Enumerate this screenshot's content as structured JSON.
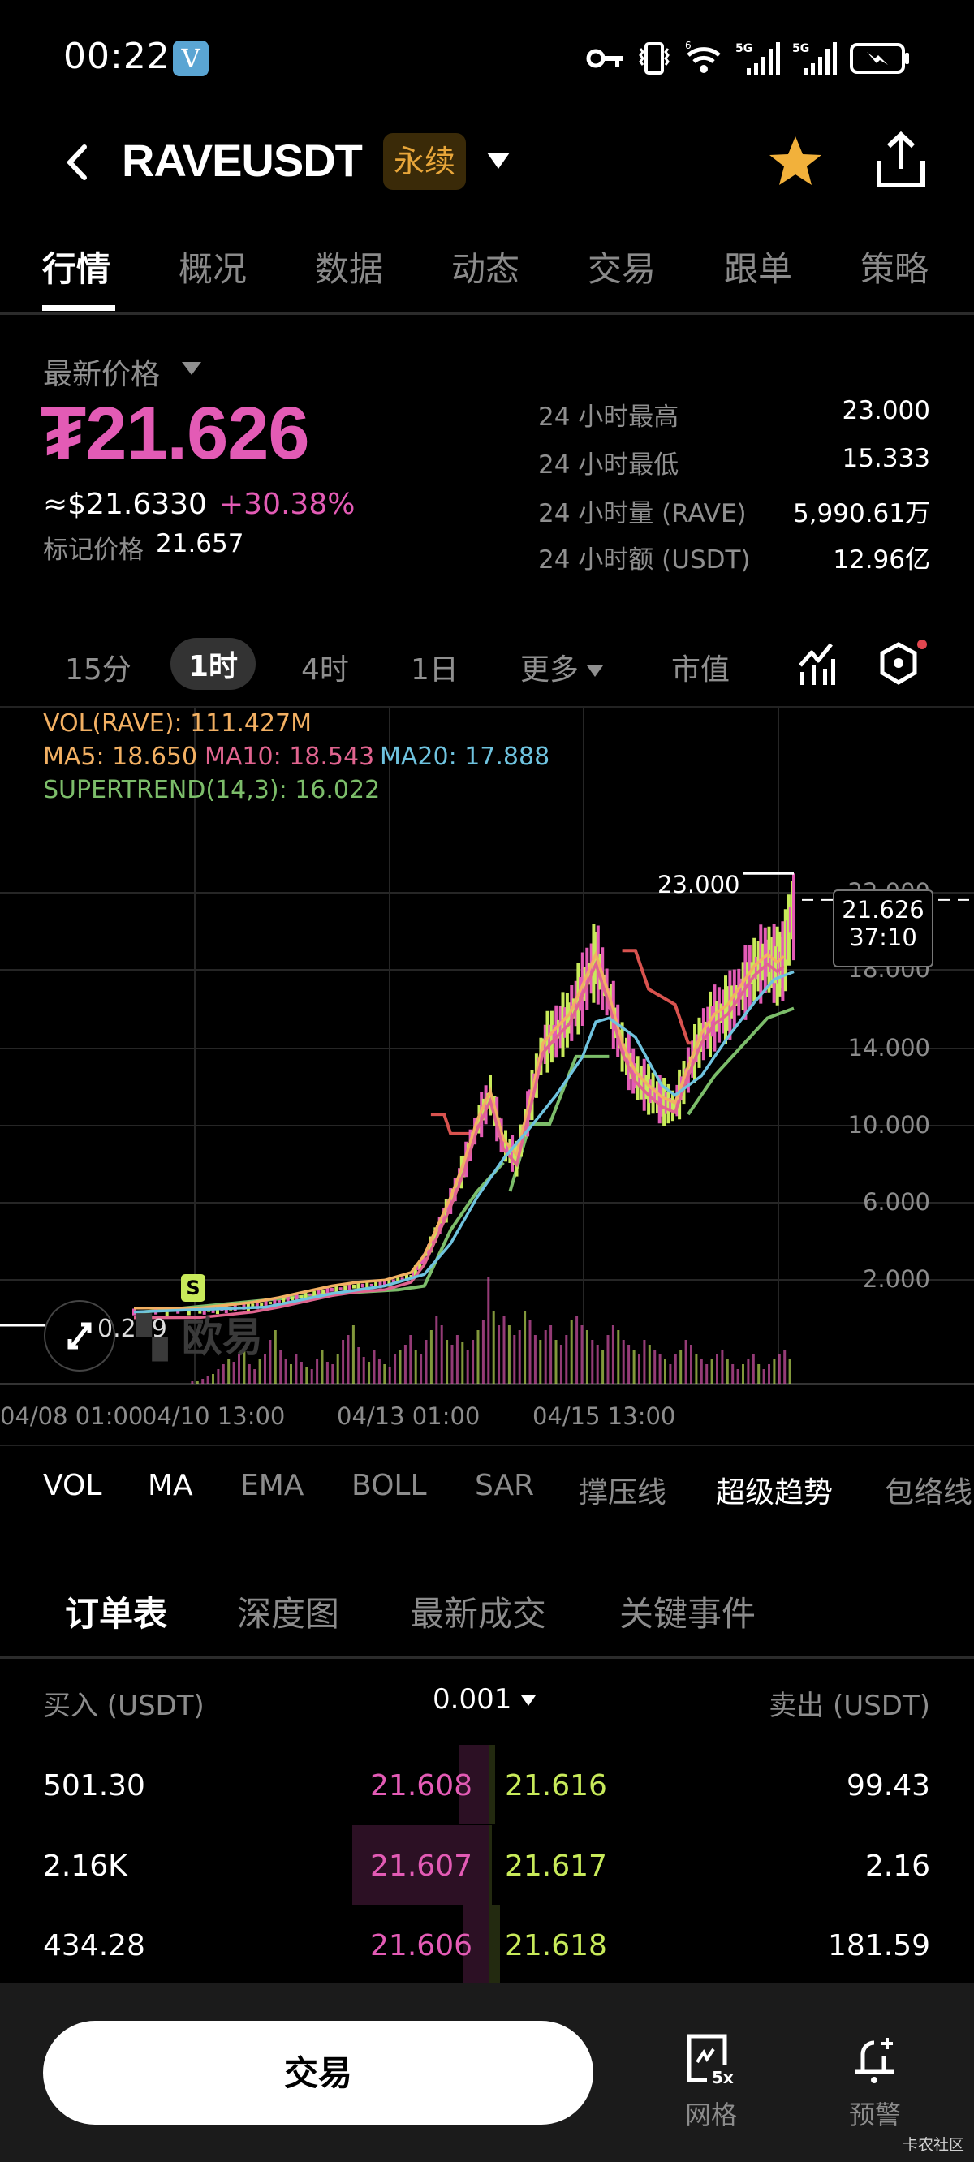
{
  "status_bar": {
    "time": "00:22",
    "badge": "V",
    "network_labels": [
      "6",
      "5G",
      "5G"
    ]
  },
  "header": {
    "pair": "RAVEUSDT",
    "contract_type": "永续",
    "favorited": true
  },
  "tabs": [
    {
      "label": "行情",
      "active": true
    },
    {
      "label": "概况"
    },
    {
      "label": "数据"
    },
    {
      "label": "动态"
    },
    {
      "label": "交易"
    },
    {
      "label": "跟单"
    },
    {
      "label": "策略"
    }
  ],
  "price": {
    "label": "最新价格",
    "last": "₮21.626",
    "usd": "≈$21.6330",
    "change": "+30.38%",
    "mark_label": "标记价格",
    "mark_value": "21.657",
    "up_color": "#e35bb5",
    "down_color": "#c8ea5a"
  },
  "stats": [
    {
      "label": "24 小时最高",
      "value": "23.000"
    },
    {
      "label": "24 小时最低",
      "value": "15.333"
    },
    {
      "label": "24 小时量 (RAVE)",
      "value": "5,990.61万"
    },
    {
      "label": "24 小时额 (USDT)",
      "value": "12.96亿"
    }
  ],
  "timeframes": [
    {
      "label": "15分"
    },
    {
      "label": "1时",
      "active": true
    },
    {
      "label": "4时"
    },
    {
      "label": "1日"
    },
    {
      "label": "更多"
    },
    {
      "label": "市值"
    }
  ],
  "indicators_legend": {
    "vol": "VOL(RAVE): 111.427M",
    "ma5": "MA5: 18.650",
    "ma10": "MA10: 18.543",
    "ma20": "MA20: 17.888",
    "supertrend": "SUPERTREND(14,3): 16.022"
  },
  "chart_data": {
    "type": "candlestick",
    "title": "RAVEUSDT Perpetual 1H",
    "y_ticks": [
      "22.000",
      "18.000",
      "14.000",
      "10.000",
      "6.000",
      "2.000"
    ],
    "ylim": [
      0,
      24
    ],
    "x_ticks": [
      "04/08 01:00",
      "04/10 13:00",
      "04/13 01:00",
      "04/15 13:00"
    ],
    "high_marker": "23.000",
    "low_marker": "0.249",
    "last_price_tag": "21.626",
    "countdown": "37:10",
    "signal_marker": "S",
    "close_path": [
      [
        0.0,
        0.25
      ],
      [
        0.1,
        0.26
      ],
      [
        0.14,
        0.4
      ],
      [
        0.18,
        0.55
      ],
      [
        0.22,
        0.8
      ],
      [
        0.26,
        1.1
      ],
      [
        0.3,
        1.4
      ],
      [
        0.34,
        1.6
      ],
      [
        0.38,
        1.7
      ],
      [
        0.42,
        2.1
      ],
      [
        0.44,
        3.0
      ],
      [
        0.46,
        4.5
      ],
      [
        0.48,
        6.0
      ],
      [
        0.5,
        7.8
      ],
      [
        0.52,
        10.0
      ],
      [
        0.54,
        11.5
      ],
      [
        0.56,
        9.0
      ],
      [
        0.58,
        8.2
      ],
      [
        0.6,
        11.0
      ],
      [
        0.62,
        14.0
      ],
      [
        0.64,
        14.8
      ],
      [
        0.66,
        15.5
      ],
      [
        0.68,
        17.0
      ],
      [
        0.7,
        18.6
      ],
      [
        0.72,
        16.5
      ],
      [
        0.74,
        14.0
      ],
      [
        0.76,
        12.5
      ],
      [
        0.78,
        11.8
      ],
      [
        0.8,
        11.2
      ],
      [
        0.82,
        10.9
      ],
      [
        0.84,
        12.8
      ],
      [
        0.86,
        14.5
      ],
      [
        0.88,
        15.5
      ],
      [
        0.9,
        16.0
      ],
      [
        0.92,
        17.0
      ],
      [
        0.94,
        18.0
      ],
      [
        0.96,
        18.6
      ],
      [
        0.975,
        18.2
      ],
      [
        0.985,
        18.5
      ],
      [
        1.0,
        21.626
      ]
    ],
    "ma20_path": [
      [
        0.0,
        0.25
      ],
      [
        0.2,
        0.5
      ],
      [
        0.3,
        1.2
      ],
      [
        0.38,
        1.6
      ],
      [
        0.44,
        2.2
      ],
      [
        0.48,
        3.8
      ],
      [
        0.52,
        6.2
      ],
      [
        0.56,
        8.2
      ],
      [
        0.6,
        9.8
      ],
      [
        0.64,
        11.5
      ],
      [
        0.68,
        13.5
      ],
      [
        0.7,
        15.3
      ],
      [
        0.72,
        15.5
      ],
      [
        0.76,
        14.5
      ],
      [
        0.8,
        12.0
      ],
      [
        0.82,
        11.5
      ],
      [
        0.86,
        12.5
      ],
      [
        0.9,
        14.5
      ],
      [
        0.94,
        16.3
      ],
      [
        0.97,
        17.5
      ],
      [
        1.0,
        17.9
      ]
    ],
    "supertrend_down_segments": [
      [
        [
          0.45,
          10.5
        ],
        [
          0.47,
          10.5
        ],
        [
          0.48,
          9.5
        ],
        [
          0.52,
          9.5
        ]
      ],
      [
        [
          0.74,
          19.0
        ],
        [
          0.76,
          19.0
        ],
        [
          0.78,
          17.0
        ],
        [
          0.82,
          16.2
        ],
        [
          0.84,
          14.2
        ],
        [
          0.85,
          14.2
        ]
      ]
    ],
    "supertrend_up_segments": [
      [
        [
          0.0,
          0.2
        ],
        [
          0.3,
          1.2
        ],
        [
          0.4,
          1.4
        ],
        [
          0.44,
          1.6
        ],
        [
          0.48,
          4.5
        ],
        [
          0.52,
          6.5
        ],
        [
          0.56,
          8.0
        ]
      ],
      [
        [
          0.57,
          6.5
        ],
        [
          0.6,
          10.0
        ],
        [
          0.63,
          10.0
        ],
        [
          0.67,
          13.5
        ],
        [
          0.72,
          13.5
        ]
      ],
      [
        [
          0.84,
          10.5
        ],
        [
          0.88,
          12.5
        ],
        [
          0.92,
          14.0
        ],
        [
          0.96,
          15.5
        ],
        [
          1.0,
          16.0
        ]
      ]
    ],
    "volume_heights": [
      0,
      0,
      0,
      0,
      0,
      0,
      0,
      0,
      0,
      0,
      0,
      1,
      1,
      2,
      3,
      4,
      6,
      8,
      10,
      9,
      12,
      14,
      8,
      6,
      10,
      12,
      18,
      22,
      14,
      10,
      8,
      12,
      9,
      7,
      6,
      10,
      14,
      9,
      8,
      12,
      18,
      20,
      24,
      15,
      11,
      9,
      14,
      10,
      8,
      7,
      12,
      14,
      16,
      20,
      14,
      12,
      18,
      22,
      28,
      24,
      18,
      16,
      20,
      17,
      14,
      18,
      22,
      26,
      44,
      30,
      24,
      28,
      24,
      20,
      22,
      30,
      26,
      20,
      18,
      22,
      24,
      18,
      16,
      20,
      26,
      28,
      24,
      22,
      18,
      16,
      14,
      20,
      24,
      22,
      18,
      16,
      14,
      12,
      18,
      16,
      14,
      12,
      10,
      8,
      12,
      14,
      18,
      16,
      12,
      10,
      8,
      10,
      12,
      14,
      10,
      8,
      6,
      8,
      10,
      12,
      8,
      6,
      8,
      10,
      12,
      14,
      10
    ]
  },
  "indicator_tabs": [
    {
      "label": "VOL",
      "active": true
    },
    {
      "label": "MA",
      "active": true
    },
    {
      "label": "EMA"
    },
    {
      "label": "BOLL"
    },
    {
      "label": "SAR"
    },
    {
      "label": "撑压线"
    },
    {
      "label": "超级趋势",
      "active": true
    },
    {
      "label": "包络线"
    }
  ],
  "orderbook": {
    "tabs": [
      {
        "label": "订单表",
        "active": true
      },
      {
        "label": "深度图"
      },
      {
        "label": "最新成交"
      },
      {
        "label": "关键事件"
      }
    ],
    "bid_header": "买入 (USDT)",
    "precision": "0.001",
    "ask_header": "卖出 (USDT)",
    "rows": [
      {
        "bid_amount": "501.30",
        "bid_price": "21.608",
        "ask_price": "21.616",
        "ask_amount": "99.43",
        "bid_depth": 36,
        "ask_depth": 8
      },
      {
        "bid_amount": "2.16K",
        "bid_price": "21.607",
        "ask_price": "21.617",
        "ask_amount": "2.16",
        "bid_depth": 168,
        "ask_depth": 0
      },
      {
        "bid_amount": "434.28",
        "bid_price": "21.606",
        "ask_price": "21.618",
        "ask_amount": "181.59",
        "bid_depth": 32,
        "ask_depth": 14
      }
    ]
  },
  "bottom_bar": {
    "trade_label": "交易",
    "grid_label": "网格",
    "grid_badge": "5x",
    "alert_label": "预警"
  },
  "watermark": "卡农社区"
}
